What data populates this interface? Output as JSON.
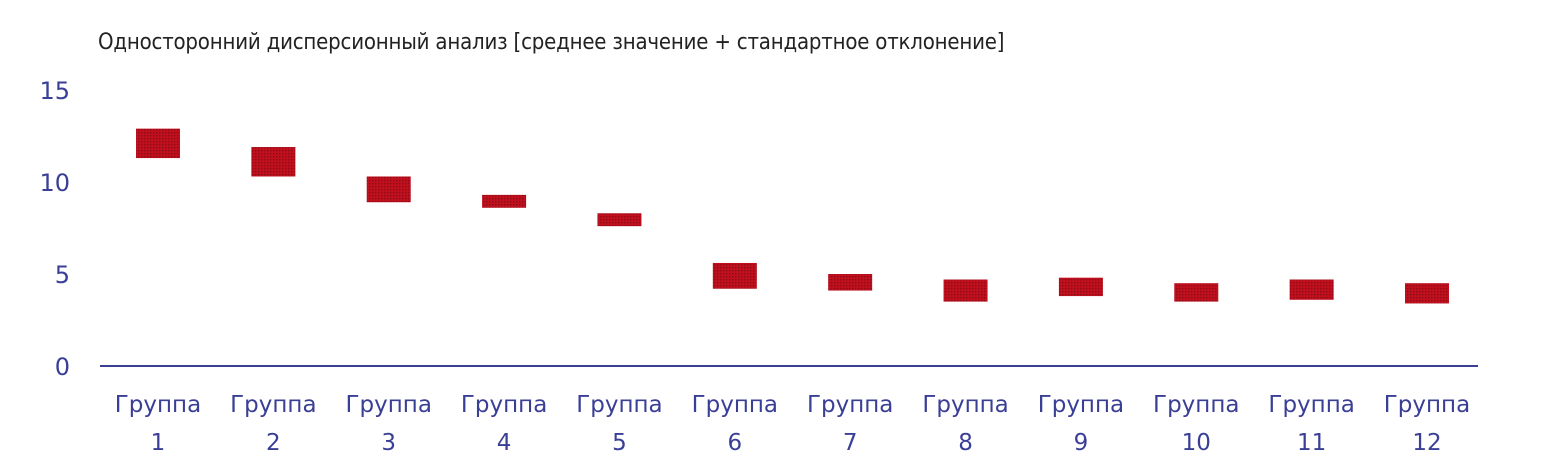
{
  "chart_data": {
    "type": "bar",
    "title": "Односторонний дисперсионный анализ [среднее значение + стандартное отклонение]",
    "xlabel": "",
    "ylabel": "",
    "ylim": [
      0,
      15
    ],
    "yticks": [
      "0",
      "5",
      "10",
      "15"
    ],
    "categories": [
      [
        "Группа",
        "1"
      ],
      [
        "Группа",
        "2"
      ],
      [
        "Группа",
        "3"
      ],
      [
        "Группа",
        "4"
      ],
      [
        "Группа",
        "5"
      ],
      [
        "Группа",
        "6"
      ],
      [
        "Группа",
        "7"
      ],
      [
        "Группа",
        "8"
      ],
      [
        "Группа",
        "9"
      ],
      [
        "Группа",
        "10"
      ],
      [
        "Группа",
        "11"
      ],
      [
        "Группа",
        "12"
      ]
    ],
    "series": [
      {
        "low": [
          11.3,
          10.3,
          8.9,
          8.6,
          7.6,
          4.2,
          4.1,
          3.5,
          3.8,
          3.5,
          3.6,
          3.4
        ],
        "high": [
          12.9,
          11.9,
          10.3,
          9.3,
          8.3,
          5.6,
          5.0,
          4.7,
          4.8,
          4.5,
          4.7,
          4.5
        ]
      }
    ],
    "grid": false,
    "legend": "none",
    "colors": {
      "bar": "#c0101e",
      "axis": "#3a3f96",
      "text": "#3a3f96"
    }
  }
}
